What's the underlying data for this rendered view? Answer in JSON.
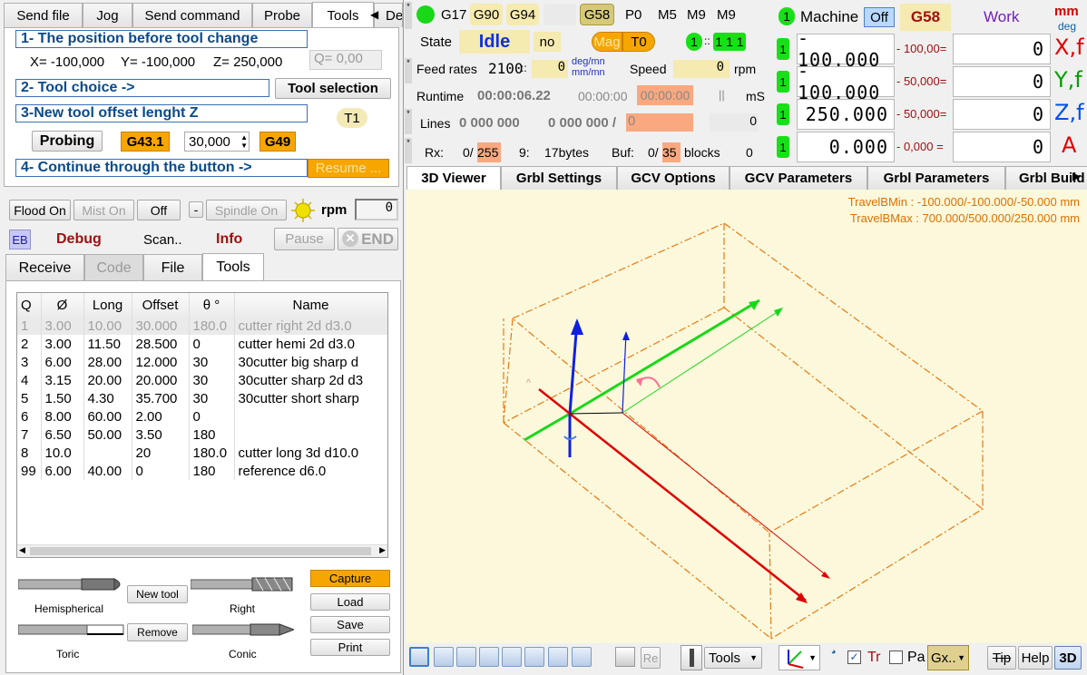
{
  "tabs_top": [
    "Send file",
    "Jog",
    "Send command",
    "Probe",
    "Tools",
    "Deb"
  ],
  "steps": {
    "s1": "1- The position before tool change",
    "s2": "2- Tool choice ->",
    "s3": "3-New tool offset lenght Z",
    "s4": "4- Continue through the button ->"
  },
  "position": {
    "x": "X= -100,000",
    "y": "Y= -100,000",
    "z": "Z= 250,000",
    "q": "Q= 0,00"
  },
  "tool_selection": "Tool selection",
  "tool_badge": "T1",
  "probing": "Probing",
  "g431": "G43.1",
  "offset_value": "30,000",
  "g49": "G49",
  "resume": "Resume ...",
  "flood": "Flood On",
  "mist": "Mist On",
  "off": "Off",
  "minus": "-",
  "spindle": "Spindle On",
  "rpm": "rpm",
  "rpm_value": "0",
  "eb": "EB",
  "debug": "Debug",
  "scan": "Scan..",
  "info": "Info",
  "pause": "Pause",
  "end": "END",
  "lower_tabs": [
    "Receive",
    "Code",
    "File",
    "Tools"
  ],
  "table": {
    "headers": [
      "Q",
      "Ø",
      "Long",
      "Offset",
      "θ °",
      "Name"
    ],
    "rows": [
      [
        "1",
        "3.00",
        "10.00",
        "30.000",
        "180.0",
        "cutter right 2d d3.0"
      ],
      [
        "2",
        "3.00",
        "11.50",
        "28.500",
        "0",
        "cutter hemi 2d d3.0"
      ],
      [
        "3",
        "6.00",
        "28.00",
        "12.000",
        "30",
        "30cutter big sharp d"
      ],
      [
        "4",
        "3.15",
        "20.00",
        "20.000",
        "30",
        "30cutter sharp 2d d3"
      ],
      [
        "5",
        "1.50",
        "4.30",
        "35.700",
        "30",
        "30cutter short sharp"
      ],
      [
        "6",
        "8.00",
        "60.00",
        "2.00",
        "0",
        ""
      ],
      [
        "7",
        "6.50",
        "50.00",
        "3.50",
        "180",
        ""
      ],
      [
        "8",
        "10.0",
        "",
        "20",
        "180.0",
        "cutter long 3d d10.0"
      ],
      [
        "99",
        "6.00",
        "40.00",
        "0",
        "180",
        "reference d6.0"
      ]
    ]
  },
  "tool_types": {
    "hemi": "Hemispherical",
    "right": "Right",
    "toric": "Toric",
    "conic": "Conic",
    "new_tool": "New tool",
    "remove": "Remove"
  },
  "side_buttons": [
    "Capture",
    "Load",
    "Save",
    "Print"
  ],
  "gcodes": [
    "G17",
    "G90",
    "G94",
    "G58",
    "P0",
    "M5",
    "M9",
    "M9"
  ],
  "state": {
    "label": "State",
    "value": "Idle",
    "no": "no",
    "mag": "Mag",
    "t0": "T0",
    "one": "1",
    "counter": "1 1 1"
  },
  "feed": {
    "label": "Feed rates",
    "value": "2100",
    "sep": "::",
    "zero": "0",
    "unit1": "deg/mn",
    "unit2": "mm/mn",
    "speed": "Speed",
    "speed_val": "0",
    "rpm": "rpm"
  },
  "runtime": {
    "label": "Runtime",
    "t1": "00:00:06.22",
    "t2": "00:00:00",
    "t3": "00:00:00",
    "ms": "mS",
    "bar": "||"
  },
  "lines": {
    "label": "Lines",
    "v1": "0 000 000",
    "v2": "0 000 000 /",
    "v3": "0",
    "v4": "0"
  },
  "rx": {
    "label": "Rx:",
    "v": "0/",
    "max": "255",
    "n9": "9:",
    "bytes": "17bytes",
    "buf": "Buf:",
    "buf_v": "0/",
    "buf_max": "35",
    "blocks": "blocks",
    "zero": "0"
  },
  "machine": {
    "label": "Machine",
    "off": "Off",
    "g58": "G58",
    "work": "Work",
    "mm": "mm",
    "deg": "deg"
  },
  "axes": [
    {
      "mach": "- 100.000",
      "off": "- 100,00=",
      "work": "0",
      "letter": "X,f",
      "color": "#e00000"
    },
    {
      "mach": "- 100.000",
      "off": "- 50,000=",
      "work": "0",
      "letter": "Y,f",
      "color": "#00a000"
    },
    {
      "mach": "250.000",
      "off": "- 50,000=",
      "work": "0",
      "letter": "Z,f",
      "color": "#0050e0"
    },
    {
      "mach": "0.000",
      "off": "- 0,000 =",
      "work": "0",
      "letter": "A",
      "color": "#e00000"
    }
  ],
  "viewer_tabs": [
    "3D Viewer",
    "Grbl Settings",
    "GCV Options",
    "GCV Parameters",
    "Grbl Parameters",
    "Grbl Build"
  ],
  "travel": {
    "min": "TravelBMin : -100.000/-100.000/-50.000 mm",
    "max": "TravelBMax : 700.000/500.000/250.000 mm"
  },
  "bottom": {
    "re": "Re",
    "tools": "Tools",
    "tr": "Tr",
    "pa": "Pa",
    "gx": "Gx..",
    "tip": "Tip",
    "help": "Help",
    "threed": "3D"
  }
}
